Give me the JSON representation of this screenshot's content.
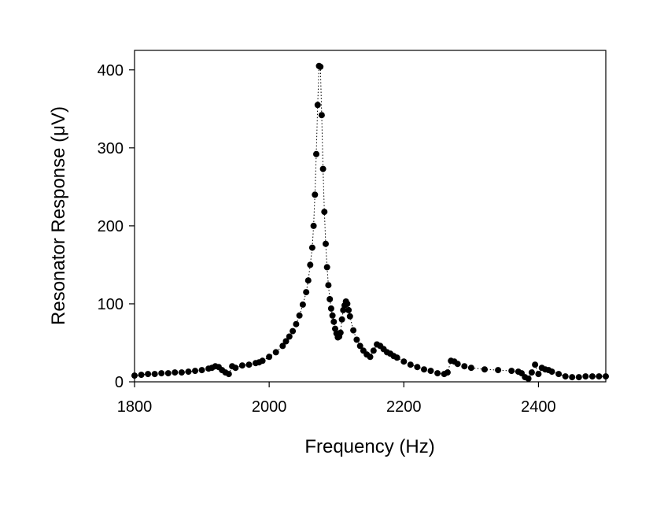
{
  "chart_data": {
    "type": "scatter",
    "title": "",
    "xlabel": "Frequency (Hz)",
    "ylabel": "Resonator Response (μV)",
    "xlim": [
      1800,
      2500
    ],
    "ylim": [
      0,
      425
    ],
    "xticks": [
      1800,
      2000,
      2200,
      2400
    ],
    "yticks": [
      0,
      100,
      200,
      300,
      400
    ],
    "grid": false,
    "legend": "none",
    "marker": "filled-circle",
    "line_style": "dotted",
    "color": "#000000",
    "series": [
      {
        "x": [
          1800,
          1810,
          1820,
          1830,
          1840,
          1850,
          1860,
          1870,
          1880,
          1890,
          1900,
          1910,
          1915,
          1920,
          1925,
          1930,
          1935,
          1940,
          1945,
          1950,
          1960,
          1970,
          1980,
          1985,
          1990,
          2000,
          2010,
          2020,
          2025,
          2030,
          2035,
          2040,
          2045,
          2050,
          2055,
          2058,
          2061,
          2064,
          2066,
          2068,
          2070,
          2072,
          2074,
          2076,
          2078,
          2080,
          2082,
          2084,
          2086,
          2088,
          2090,
          2092,
          2094,
          2096,
          2098,
          2100,
          2102,
          2104,
          2106,
          2108,
          2110,
          2112,
          2114,
          2116,
          2118,
          2120,
          2125,
          2130,
          2135,
          2140,
          2145,
          2150,
          2155,
          2160,
          2165,
          2170,
          2175,
          2180,
          2185,
          2190,
          2200,
          2210,
          2220,
          2230,
          2240,
          2250,
          2260,
          2265,
          2270,
          2275,
          2280,
          2290,
          2300,
          2320,
          2340,
          2360,
          2370,
          2375,
          2380,
          2385,
          2390,
          2395,
          2400,
          2405,
          2410,
          2415,
          2420,
          2430,
          2440,
          2450,
          2460,
          2470,
          2480,
          2490,
          2500
        ],
        "y": [
          8,
          9,
          10,
          10,
          11,
          11,
          12,
          12,
          13,
          14,
          15,
          17,
          18,
          20,
          19,
          15,
          12,
          10,
          20,
          18,
          21,
          22,
          24,
          25,
          27,
          32,
          38,
          46,
          52,
          58,
          65,
          74,
          85,
          99,
          115,
          130,
          150,
          172,
          200,
          240,
          292,
          355,
          405,
          404,
          342,
          273,
          218,
          177,
          147,
          124,
          106,
          94,
          85,
          77,
          68,
          62,
          57,
          58,
          63,
          80,
          92,
          98,
          103,
          100,
          92,
          84,
          66,
          54,
          46,
          40,
          35,
          32,
          40,
          48,
          46,
          42,
          38,
          36,
          33,
          31,
          26,
          22,
          19,
          16,
          14,
          11,
          10,
          12,
          27,
          26,
          23,
          20,
          18,
          16,
          15,
          14,
          13,
          11,
          6,
          4,
          12,
          22,
          10,
          18,
          16,
          15,
          13,
          10,
          7,
          6,
          6,
          7,
          7,
          7,
          7
        ]
      }
    ]
  }
}
